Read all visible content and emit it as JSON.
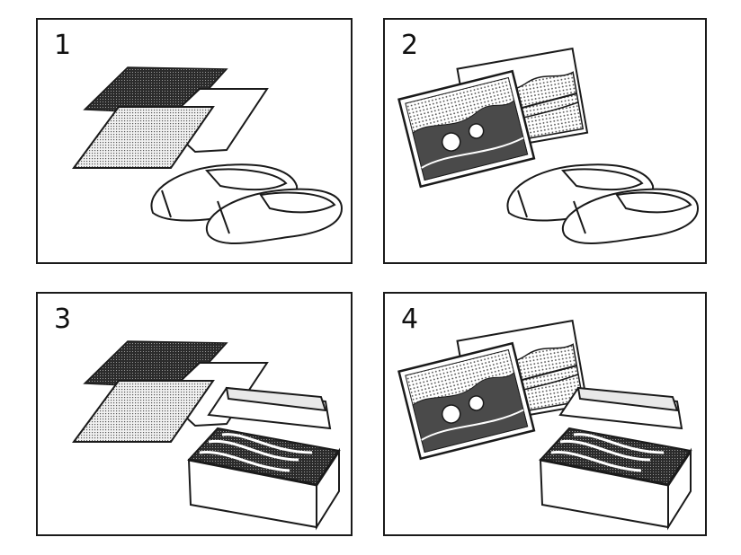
{
  "panels": [
    {
      "number": "1",
      "items": [
        "fabric-swatches",
        "slippers"
      ]
    },
    {
      "number": "2",
      "items": [
        "photographs",
        "slippers"
      ]
    },
    {
      "number": "3",
      "items": [
        "fabric-swatches",
        "biscuit-box"
      ]
    },
    {
      "number": "4",
      "items": [
        "photographs",
        "biscuit-box"
      ]
    }
  ],
  "colors": {
    "line": "#1a1a1a",
    "dark_fill": "#3a3a3a",
    "light_fill": "#c9c9c9"
  }
}
